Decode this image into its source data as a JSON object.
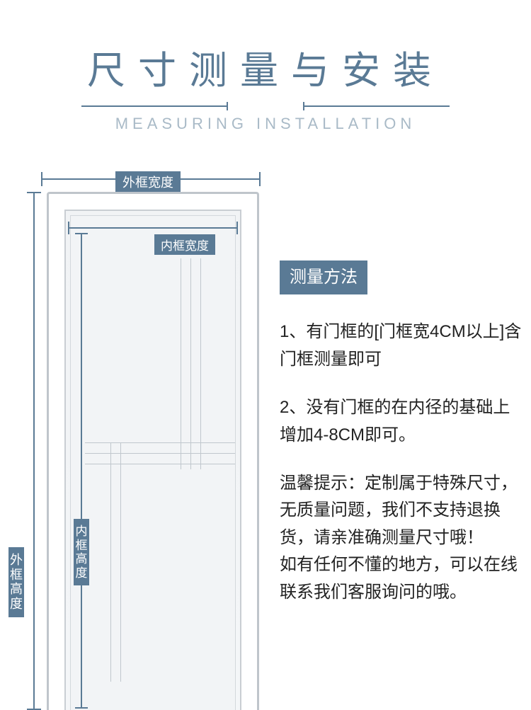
{
  "colors": {
    "accent": "#5a7a95",
    "subtitle": "#a9bac7",
    "text": "#222222",
    "background": "#ffffff",
    "door_fill": "#f2f4f6",
    "door_border": "#bfc5cb"
  },
  "header": {
    "title_cn": "尺寸测量与安装",
    "title_en": "MEASURING INSTALLATION"
  },
  "diagram": {
    "outer_width_label": "外框宽度",
    "inner_width_label": "内框宽度",
    "outer_height_label": "外框高度",
    "inner_height_label": "内框高度"
  },
  "info": {
    "method_title": "测量方法",
    "point1": "1、有门框的[门框宽4CM以上]含门框测量即可",
    "point2": "2、没有门框的在内径的基础上增加4-8CM即可。",
    "tip": "温馨提示：定制属于特殊尺寸，无质量问题，我们不支持退换货，请亲准确测量尺寸哦！\n如有任何不懂的地方，可以在线联系我们客服询问的哦。"
  }
}
